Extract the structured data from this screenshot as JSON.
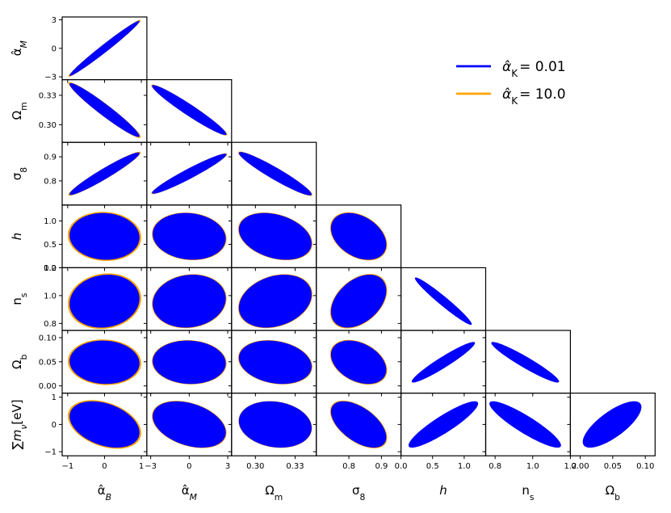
{
  "chart_data": {
    "type": "scatter",
    "subtype": "fisher-corner-plot",
    "title": "",
    "legend": {
      "placement": "top-right",
      "entries": [
        {
          "label_base": "α̂",
          "label_sub": "K",
          "label_value": "= 0.01",
          "color": "#0000ff"
        },
        {
          "label_base": "α̂",
          "label_sub": "K",
          "label_value": "= 10.0",
          "color": "#ffa500"
        }
      ]
    },
    "series": [
      {
        "name": "α̂K = 0.01",
        "color": "#0000ff"
      },
      {
        "name": "α̂K = 10.0",
        "color": "#ffa500"
      }
    ],
    "parameters": [
      {
        "id": "aB",
        "label_base": "α̂",
        "label_sub": "B",
        "italic_sub": true,
        "fiducial": 0.0,
        "range": [
          -1.15,
          1.15
        ],
        "ticks": [
          -1,
          0,
          1
        ],
        "tick_labels": [
          "−1",
          "0",
          "1"
        ]
      },
      {
        "id": "aM",
        "label_base": "α̂",
        "label_sub": "M",
        "italic_sub": true,
        "fiducial": 0.0,
        "range": [
          -3.3,
          3.3
        ],
        "ticks": [
          -3,
          0,
          3
        ],
        "tick_labels": [
          "−3",
          "0",
          "3"
        ]
      },
      {
        "id": "Om",
        "label_base": "Ω",
        "label_sub": "m",
        "italic_sub": false,
        "fiducial": 0.315,
        "range": [
          0.282,
          0.346
        ],
        "ticks": [
          0.3,
          0.33
        ],
        "tick_labels": [
          "0.30",
          "0.33"
        ]
      },
      {
        "id": "s8",
        "label_base": "σ",
        "label_sub": "8",
        "italic_sub": false,
        "fiducial": 0.83,
        "range": [
          0.7,
          0.96
        ],
        "ticks": [
          0.8,
          0.9
        ],
        "tick_labels": [
          "0.8",
          "0.9"
        ]
      },
      {
        "id": "h",
        "label_base": "h",
        "label_sub": "",
        "italic_sub": false,
        "fiducial": 0.67,
        "range": [
          0.0,
          1.34
        ],
        "ticks": [
          0.0,
          0.5,
          1.0
        ],
        "tick_labels": [
          "0.0",
          "0.5",
          "1.0"
        ]
      },
      {
        "id": "ns",
        "label_base": "n",
        "label_sub": "s",
        "italic_sub": false,
        "fiducial": 0.96,
        "range": [
          0.75,
          1.2
        ],
        "ticks": [
          0.8,
          1.0,
          1.2
        ],
        "tick_labels": [
          "0.8",
          "1.0",
          "1.2"
        ]
      },
      {
        "id": "Ob",
        "label_base": "Ω",
        "label_sub": "b",
        "italic_sub": false,
        "fiducial": 0.049,
        "range": [
          -0.015,
          0.115
        ],
        "ticks": [
          0.0,
          0.05,
          0.1
        ],
        "tick_labels": [
          "0.00",
          "0.05",
          "0.10"
        ]
      },
      {
        "id": "mnu",
        "label_base": "∑",
        "label_mid": "m",
        "label_sub": "ν",
        "label_unit": "[eV]",
        "italic_sub": true,
        "fiducial": 0.0,
        "range": [
          -1.15,
          1.15
        ],
        "ticks": [
          -1,
          0,
          1
        ],
        "tick_labels": [
          "−1",
          "0",
          "1"
        ]
      }
    ],
    "ellipses": [
      {
        "row": 1,
        "col": 0,
        "sx": 0.95,
        "sy": 2.9,
        "rho": 0.985,
        "orange_scale": 1.035
      },
      {
        "row": 2,
        "col": 0,
        "sx": 0.95,
        "sy": 0.0275,
        "rho": -0.965,
        "orange_scale": 1.035
      },
      {
        "row": 2,
        "col": 1,
        "sx": 2.9,
        "sy": 0.0255,
        "rho": -0.965,
        "orange_scale": 1.02
      },
      {
        "row": 3,
        "col": 0,
        "sx": 0.95,
        "sy": 0.088,
        "rho": 0.96,
        "orange_scale": 1.035
      },
      {
        "row": 3,
        "col": 1,
        "sx": 2.9,
        "sy": 0.083,
        "rho": 0.96,
        "orange_scale": 1.02
      },
      {
        "row": 3,
        "col": 2,
        "sx": 0.0275,
        "sy": 0.09,
        "rho": -0.95,
        "orange_scale": 1.02
      },
      {
        "row": 4,
        "col": 0,
        "sx": 0.95,
        "sy": 0.5,
        "rho": -0.05,
        "orange_scale": 1.05
      },
      {
        "row": 4,
        "col": 1,
        "sx": 2.85,
        "sy": 0.5,
        "rho": -0.1,
        "orange_scale": 1.02
      },
      {
        "row": 4,
        "col": 2,
        "sx": 0.0275,
        "sy": 0.5,
        "rho": -0.3,
        "orange_scale": 1.02
      },
      {
        "row": 4,
        "col": 3,
        "sx": 0.085,
        "sy": 0.5,
        "rho": -0.35,
        "orange_scale": 1.03
      },
      {
        "row": 5,
        "col": 0,
        "sx": 0.95,
        "sy": 0.19,
        "rho": 0.1,
        "orange_scale": 1.05
      },
      {
        "row": 5,
        "col": 1,
        "sx": 2.85,
        "sy": 0.19,
        "rho": 0.1,
        "orange_scale": 1.02
      },
      {
        "row": 5,
        "col": 2,
        "sx": 0.0275,
        "sy": 0.19,
        "rho": 0.25,
        "orange_scale": 1.02
      },
      {
        "row": 5,
        "col": 3,
        "sx": 0.085,
        "sy": 0.19,
        "rho": 0.4,
        "orange_scale": 1.03
      },
      {
        "row": 5,
        "col": 4,
        "sx": 0.45,
        "sy": 0.17,
        "rho": -0.97,
        "orange_scale": 1.0
      },
      {
        "row": 6,
        "col": 0,
        "sx": 0.95,
        "sy": 0.045,
        "rho": -0.05,
        "orange_scale": 1.05
      },
      {
        "row": 6,
        "col": 1,
        "sx": 2.85,
        "sy": 0.045,
        "rho": -0.05,
        "orange_scale": 1.02
      },
      {
        "row": 6,
        "col": 2,
        "sx": 0.0275,
        "sy": 0.045,
        "rho": -0.2,
        "orange_scale": 1.02
      },
      {
        "row": 6,
        "col": 3,
        "sx": 0.085,
        "sy": 0.045,
        "rho": -0.35,
        "orange_scale": 1.03
      },
      {
        "row": 6,
        "col": 4,
        "sx": 0.5,
        "sy": 0.042,
        "rho": 0.95,
        "orange_scale": 1.0
      },
      {
        "row": 6,
        "col": 5,
        "sx": 0.18,
        "sy": 0.042,
        "rho": -0.95,
        "orange_scale": 1.0
      },
      {
        "row": 7,
        "col": 0,
        "sx": 0.95,
        "sy": 0.85,
        "rho": -0.35,
        "orange_scale": 1.05
      },
      {
        "row": 7,
        "col": 1,
        "sx": 2.85,
        "sy": 0.85,
        "rho": -0.35,
        "orange_scale": 1.02
      },
      {
        "row": 7,
        "col": 2,
        "sx": 0.0275,
        "sy": 0.85,
        "rho": -0.15,
        "orange_scale": 1.01
      },
      {
        "row": 7,
        "col": 3,
        "sx": 0.085,
        "sy": 0.85,
        "rho": -0.55,
        "orange_scale": 1.03
      },
      {
        "row": 7,
        "col": 4,
        "sx": 0.55,
        "sy": 0.85,
        "rho": 0.9,
        "orange_scale": 1.0
      },
      {
        "row": 7,
        "col": 5,
        "sx": 0.19,
        "sy": 0.85,
        "rho": -0.9,
        "orange_scale": 1.0
      },
      {
        "row": 7,
        "col": 6,
        "sx": 0.045,
        "sy": 0.85,
        "rho": 0.75,
        "orange_scale": 1.0
      }
    ]
  }
}
